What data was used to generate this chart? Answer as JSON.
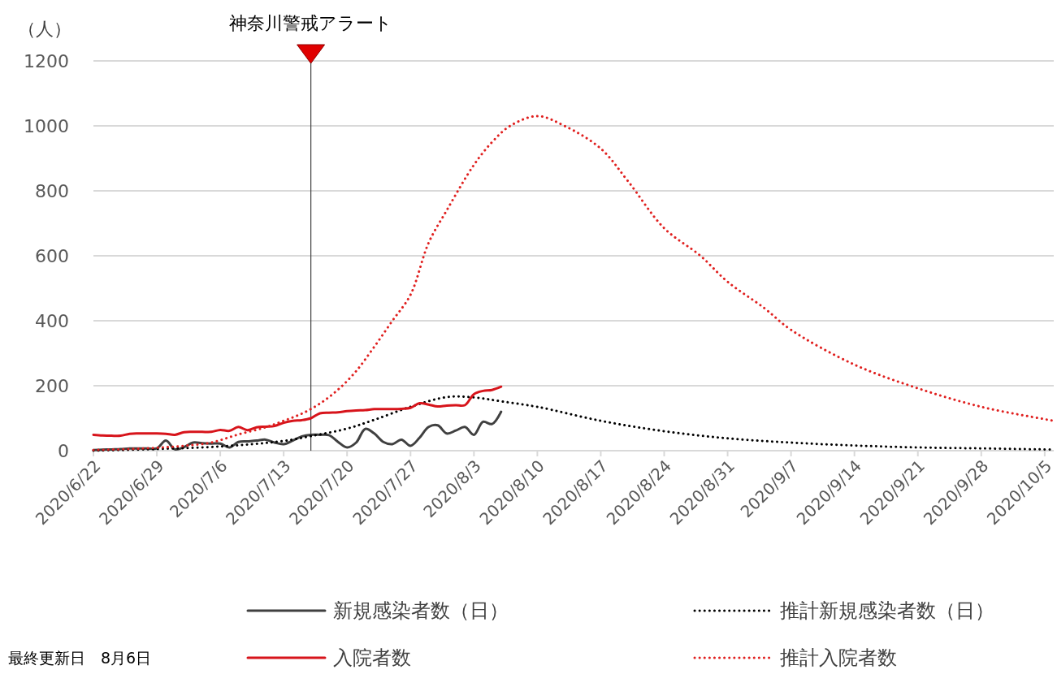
{
  "chart_data": {
    "type": "line",
    "ylabel": "（人）",
    "xlim": [
      "2020-06-22",
      "2020-10-06"
    ],
    "xticks": [
      {
        "value": "2020-06-22",
        "label": "2020/6/22"
      },
      {
        "value": "2020-06-29",
        "label": "2020/6/29"
      },
      {
        "value": "2020-07-06",
        "label": "2020/7/6"
      },
      {
        "value": "2020-07-13",
        "label": "2020/7/13"
      },
      {
        "value": "2020-07-20",
        "label": "2020/7/20"
      },
      {
        "value": "2020-07-27",
        "label": "2020/7/27"
      },
      {
        "value": "2020-08-03",
        "label": "2020/8/3"
      },
      {
        "value": "2020-08-10",
        "label": "2020/8/10"
      },
      {
        "value": "2020-08-17",
        "label": "2020/8/17"
      },
      {
        "value": "2020-08-24",
        "label": "2020/8/24"
      },
      {
        "value": "2020-08-31",
        "label": "2020/8/31"
      },
      {
        "value": "2020-09-07",
        "label": "2020/9/7"
      },
      {
        "value": "2020-09-14",
        "label": "2020/9/14"
      },
      {
        "value": "2020-09-21",
        "label": "2020/9/21"
      },
      {
        "value": "2020-09-28",
        "label": "2020/9/28"
      },
      {
        "value": "2020-10-05",
        "label": "2020/10/5"
      }
    ],
    "ylim": [
      0,
      1200
    ],
    "yticks": [
      0,
      200,
      400,
      600,
      800,
      1000,
      1200
    ],
    "grid": "y",
    "legend": "bottom",
    "series": [
      {
        "name": "新規感染者数（日）",
        "color": "#404040",
        "line_style": "solid",
        "x": [
          "2020-06-22",
          "2020-06-23",
          "2020-06-24",
          "2020-06-25",
          "2020-06-26",
          "2020-06-27",
          "2020-06-28",
          "2020-06-29",
          "2020-06-30",
          "2020-07-01",
          "2020-07-02",
          "2020-07-03",
          "2020-07-04",
          "2020-07-05",
          "2020-07-06",
          "2020-07-07",
          "2020-07-08",
          "2020-07-09",
          "2020-07-10",
          "2020-07-11",
          "2020-07-12",
          "2020-07-13",
          "2020-07-14",
          "2020-07-15",
          "2020-07-16",
          "2020-07-17",
          "2020-07-18",
          "2020-07-19",
          "2020-07-20",
          "2020-07-21",
          "2020-07-22",
          "2020-07-23",
          "2020-07-24",
          "2020-07-25",
          "2020-07-26",
          "2020-07-27",
          "2020-07-28",
          "2020-07-29",
          "2020-07-30",
          "2020-07-31",
          "2020-08-01",
          "2020-08-02",
          "2020-08-03",
          "2020-08-04",
          "2020-08-05",
          "2020-08-06"
        ],
        "values": [
          2,
          3,
          4,
          5,
          7,
          7,
          7,
          7,
          31,
          4,
          11,
          25,
          23,
          22,
          22,
          10,
          27,
          29,
          31,
          34,
          25,
          20,
          31,
          44,
          49,
          49,
          48,
          27,
          10,
          25,
          67,
          53,
          27,
          20,
          34,
          15,
          40,
          73,
          78,
          53,
          62,
          73,
          49,
          89,
          82,
          120
        ]
      },
      {
        "name": "推計新規感染者数（日）",
        "color": "#000000",
        "line_style": "dotted",
        "x": [
          "2020-06-22",
          "2020-06-29",
          "2020-07-06",
          "2020-07-13",
          "2020-07-16",
          "2020-07-20",
          "2020-07-23",
          "2020-07-27",
          "2020-07-31",
          "2020-08-03",
          "2020-08-06",
          "2020-08-10",
          "2020-08-17",
          "2020-08-24",
          "2020-08-31",
          "2020-09-07",
          "2020-09-14",
          "2020-09-21",
          "2020-09-28",
          "2020-10-05",
          "2020-10-06"
        ],
        "values": [
          0,
          5,
          13,
          30,
          45,
          68,
          95,
          135,
          165,
          164,
          152,
          135,
          92,
          60,
          38,
          25,
          16,
          10,
          7,
          4,
          4
        ]
      },
      {
        "name": "入院者数",
        "color": "#d7141b",
        "line_style": "solid",
        "x": [
          "2020-06-22",
          "2020-06-23",
          "2020-06-24",
          "2020-06-25",
          "2020-06-26",
          "2020-06-27",
          "2020-06-28",
          "2020-06-29",
          "2020-06-30",
          "2020-07-01",
          "2020-07-02",
          "2020-07-03",
          "2020-07-04",
          "2020-07-05",
          "2020-07-06",
          "2020-07-07",
          "2020-07-08",
          "2020-07-09",
          "2020-07-10",
          "2020-07-11",
          "2020-07-12",
          "2020-07-13",
          "2020-07-14",
          "2020-07-15",
          "2020-07-16",
          "2020-07-17",
          "2020-07-18",
          "2020-07-19",
          "2020-07-20",
          "2020-07-21",
          "2020-07-22",
          "2020-07-23",
          "2020-07-24",
          "2020-07-25",
          "2020-07-26",
          "2020-07-27",
          "2020-07-28",
          "2020-07-29",
          "2020-07-30",
          "2020-07-31",
          "2020-08-01",
          "2020-08-02",
          "2020-08-03",
          "2020-08-04",
          "2020-08-05",
          "2020-08-06"
        ],
        "values": [
          49,
          47,
          46,
          46,
          52,
          53,
          53,
          53,
          52,
          49,
          57,
          58,
          58,
          58,
          64,
          61,
          73,
          63,
          72,
          74,
          76,
          86,
          92,
          94,
          100,
          115,
          117,
          118,
          122,
          124,
          125,
          128,
          128,
          128,
          129,
          132,
          146,
          142,
          136,
          139,
          140,
          140,
          174,
          184,
          187,
          197
        ]
      },
      {
        "name": "推計入院者数",
        "color": "#e0201f",
        "line_style": "dotted",
        "x": [
          "2020-06-22",
          "2020-06-26",
          "2020-06-29",
          "2020-07-02",
          "2020-07-05",
          "2020-07-08",
          "2020-07-11",
          "2020-07-13",
          "2020-07-15",
          "2020-07-17",
          "2020-07-19",
          "2020-07-21",
          "2020-07-23",
          "2020-07-25",
          "2020-07-27",
          "2020-07-29",
          "2020-07-31",
          "2020-08-03",
          "2020-08-05",
          "2020-08-07",
          "2020-08-10",
          "2020-08-13",
          "2020-08-17",
          "2020-08-20",
          "2020-08-24",
          "2020-08-28",
          "2020-08-31",
          "2020-09-04",
          "2020-09-07",
          "2020-09-14",
          "2020-09-21",
          "2020-09-28",
          "2020-10-05",
          "2020-10-06"
        ],
        "values": [
          2,
          5,
          9,
          15,
          25,
          50,
          72,
          92,
          114,
          145,
          188,
          245,
          320,
          400,
          480,
          640,
          740,
          880,
          950,
          1000,
          1030,
          1000,
          930,
          830,
          685,
          600,
          520,
          440,
          372,
          265,
          192,
          135,
          97,
          92
        ]
      }
    ],
    "ref_lines": [
      {
        "axis": "x",
        "value": "2020-07-16",
        "label": "神奈川警戒アラート",
        "color": "#404040"
      }
    ],
    "annotations": [
      "最終更新日　8月6日"
    ]
  }
}
